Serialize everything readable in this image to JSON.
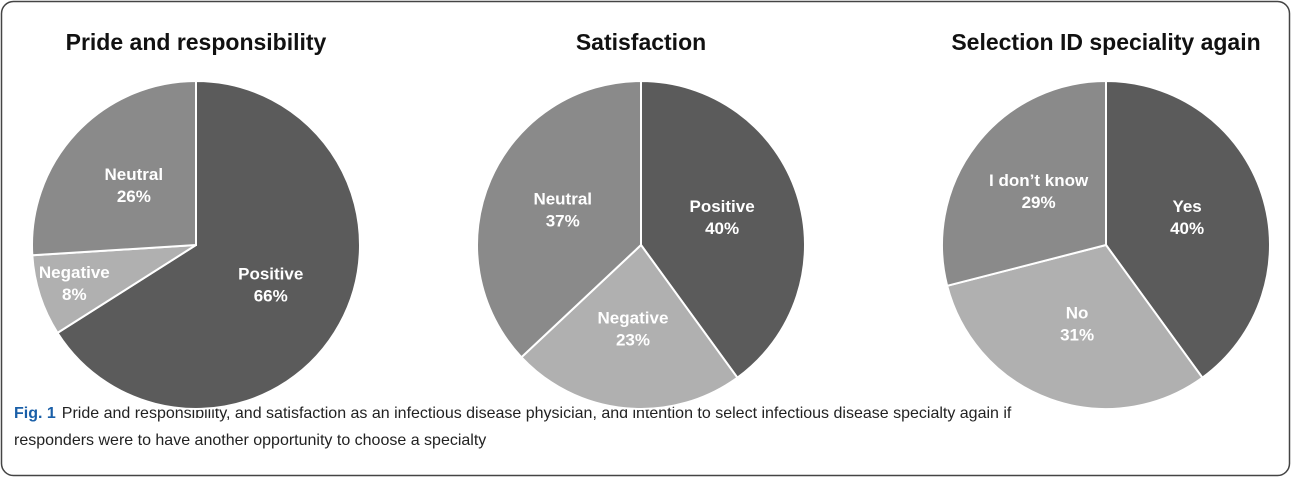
{
  "chart_data": [
    {
      "type": "pie",
      "title": "Pride and responsibility",
      "categories": [
        "Positive",
        "Negative",
        "Neutral"
      ],
      "values": [
        66,
        8,
        26
      ],
      "value_labels": [
        "66%",
        "8%",
        "26%"
      ],
      "colors": [
        "#5b5b5b",
        "#b0b0b0",
        "#8a8a8a"
      ]
    },
    {
      "type": "pie",
      "title": "Satisfaction",
      "categories": [
        "Positive",
        "Negative",
        "Neutral"
      ],
      "values": [
        40,
        23,
        37
      ],
      "value_labels": [
        "40%",
        "23%",
        "37%"
      ],
      "colors": [
        "#5b5b5b",
        "#b0b0b0",
        "#8a8a8a"
      ]
    },
    {
      "type": "pie",
      "title": "Selection ID speciality again",
      "categories": [
        "Yes",
        "No",
        "I don’t know"
      ],
      "values": [
        40,
        31,
        29
      ],
      "value_labels": [
        "40%",
        "31%",
        "29%"
      ],
      "colors": [
        "#5b5b5b",
        "#b0b0b0",
        "#8a8a8a"
      ]
    }
  ],
  "caption": {
    "label": "Fig. 1",
    "text": "Pride and responsibility, and satisfaction as an infectious disease physician, and intention to select infectious disease specialty again if",
    "text2": "responders were to have another opportunity to choose a specialty"
  }
}
